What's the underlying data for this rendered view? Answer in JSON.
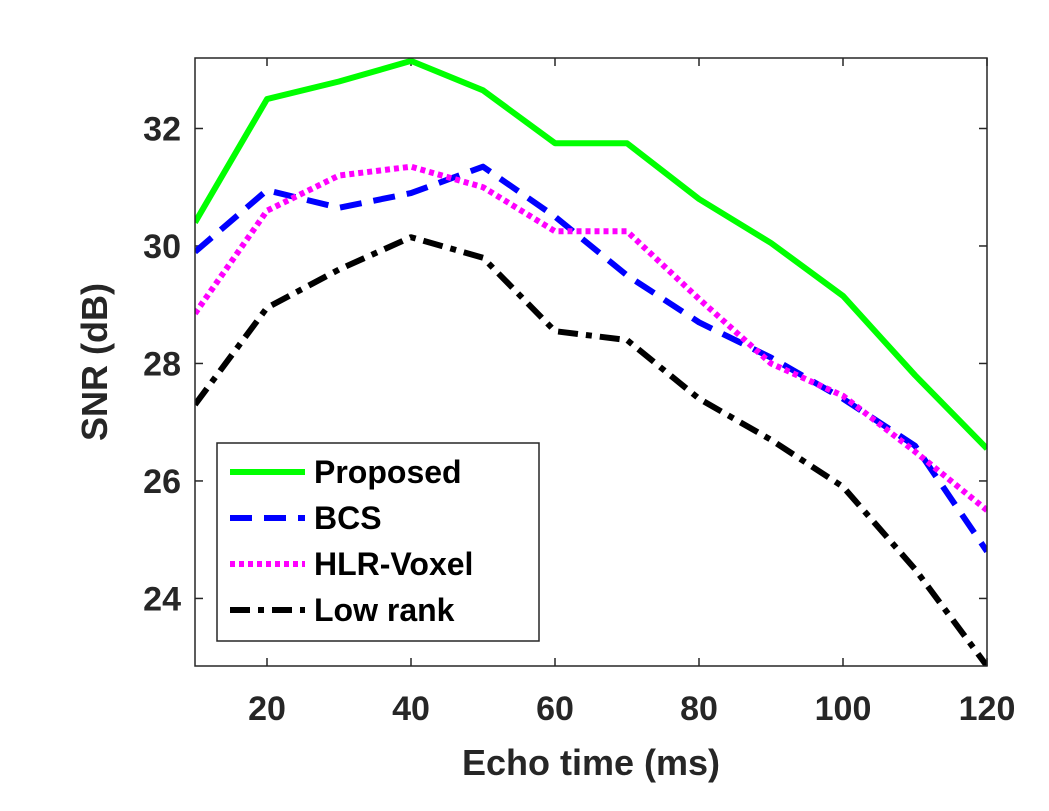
{
  "chart_data": {
    "type": "line",
    "title": "",
    "xlabel": "Echo time (ms)",
    "ylabel": "SNR (dB)",
    "xlim": [
      10,
      120
    ],
    "ylim": [
      22.85,
      33.2
    ],
    "xticks": [
      20,
      40,
      60,
      80,
      100,
      120
    ],
    "yticks": [
      24,
      26,
      28,
      30,
      32
    ],
    "x": [
      10,
      20,
      30,
      40,
      50,
      60,
      70,
      80,
      90,
      100,
      110,
      120
    ],
    "legend_position": "bottom-left",
    "series": [
      {
        "name": "Proposed",
        "color": "#00ff00",
        "style": "solid",
        "values": [
          30.4,
          32.5,
          32.8,
          33.15,
          32.65,
          31.75,
          31.75,
          30.8,
          30.05,
          29.15,
          27.8,
          26.55
        ]
      },
      {
        "name": "BCS",
        "color": "#0000ff",
        "style": "dashed",
        "values": [
          29.9,
          30.95,
          30.65,
          30.9,
          31.35,
          30.5,
          29.5,
          28.7,
          28.1,
          27.4,
          26.6,
          24.8
        ]
      },
      {
        "name": "HLR-Voxel",
        "color": "#ff00ff",
        "style": "dotted",
        "values": [
          28.85,
          30.6,
          31.2,
          31.35,
          31.0,
          30.25,
          30.25,
          29.1,
          28.0,
          27.45,
          26.5,
          25.5
        ]
      },
      {
        "name": "Low rank",
        "color": "#000000",
        "style": "dashdot",
        "values": [
          27.3,
          28.95,
          29.6,
          30.15,
          29.8,
          28.55,
          28.4,
          27.4,
          26.7,
          25.9,
          24.5,
          22.85
        ]
      }
    ]
  }
}
